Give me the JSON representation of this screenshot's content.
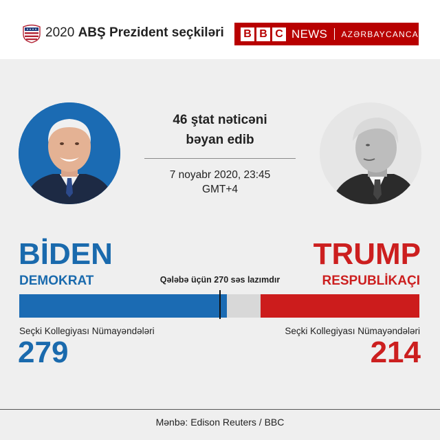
{
  "header": {
    "year": "2020",
    "title": "ABŞ Prezident seçkiləri",
    "logo_icon": "us-election-badge-icon"
  },
  "brand": {
    "letters": [
      "B",
      "B",
      "C"
    ],
    "news": "NEWS",
    "language": "AZƏRBAYCANCA",
    "color": "#b80000"
  },
  "info": {
    "title_line1": "46 ştat nəticəni",
    "title_line2": "bəyan edib",
    "date_line1": "7 noyabr 2020, 23:45",
    "date_line2": "GMT+4"
  },
  "threshold": {
    "label": "Qələbə üçün 270 səs lazımdır",
    "value": 270,
    "total": 538
  },
  "candidates": {
    "left": {
      "name": "BİDEN",
      "party": "DEMOKRAT",
      "ec_label": "Seçki Kollegiyası Nümayəndələri",
      "votes": 279,
      "votes_text": "279",
      "color": "#1b6bb3",
      "portrait": "biden-portrait"
    },
    "right": {
      "name": "TRUMP",
      "party": "RESPUBLİKAÇI",
      "ec_label": "Seçki Kollegiyası Nümayəndələri",
      "votes": 214,
      "votes_text": "214",
      "color": "#cc1c1c",
      "portrait": "trump-portrait"
    }
  },
  "footer": {
    "source": "Mənbə: Edison Reuters / BBC"
  }
}
